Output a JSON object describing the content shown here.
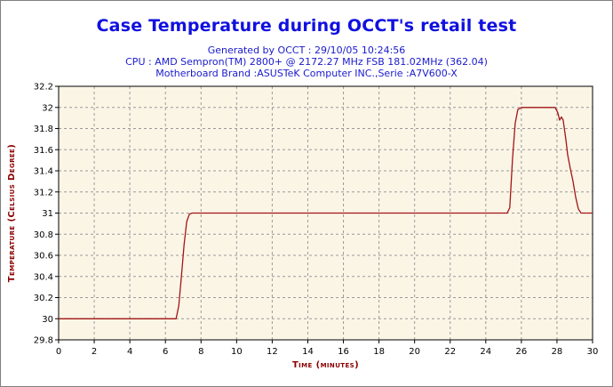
{
  "header": {
    "title": "Case Temperature during OCCT's retail test",
    "line1": "Generated by OCCT : 29/10/05 10:24:56",
    "line2": "CPU : AMD Sempron(TM) 2800+ @ 2172.27 MHz FSB 181.02MHz (362.04)",
    "line3": "Motherboard Brand :ASUSTeK Computer INC.,Serie :A7V600-X"
  },
  "colors": {
    "title": "#1010e0",
    "subtitle": "#1a1acc",
    "plot_background": "#fbf5e6",
    "series_line": "#a31515",
    "axis_label": "#8b0000",
    "grid": "#9a9a9a"
  },
  "chart_data": {
    "type": "line",
    "title": "Case Temperature during OCCT's retail test",
    "xlabel": "Time (minutes)",
    "ylabel": "Temperature (Celsius Degree)",
    "xlim": [
      0,
      30
    ],
    "ylim": [
      29.8,
      32.2
    ],
    "x_ticks": [
      "0",
      "2",
      "4",
      "6",
      "8",
      "10",
      "12",
      "14",
      "16",
      "18",
      "20",
      "22",
      "24",
      "26",
      "28",
      "30"
    ],
    "y_ticks": [
      "29.8",
      "30",
      "30.2",
      "30.4",
      "30.6",
      "30.8",
      "31",
      "31.2",
      "31.4",
      "31.6",
      "31.8",
      "32",
      "32.2"
    ],
    "grid": true,
    "grid_style": "dashed",
    "legend": "none",
    "series": [
      {
        "x": [
          0,
          6.6,
          6.75,
          6.9,
          7.05,
          7.2,
          7.35,
          7.5,
          25.2,
          25.35,
          25.5,
          25.65,
          25.8,
          26.0,
          27.9,
          28.05,
          28.15,
          28.25,
          28.35,
          28.5,
          28.6,
          28.75,
          28.9,
          29.05,
          29.2,
          29.35,
          30
        ],
        "y": [
          30,
          30,
          30.12,
          30.4,
          30.7,
          30.92,
          30.99,
          31,
          31,
          31.05,
          31.5,
          31.85,
          31.98,
          32,
          32,
          31.95,
          31.88,
          31.91,
          31.88,
          31.7,
          31.55,
          31.42,
          31.3,
          31.15,
          31.04,
          31.0,
          31
        ]
      }
    ]
  }
}
